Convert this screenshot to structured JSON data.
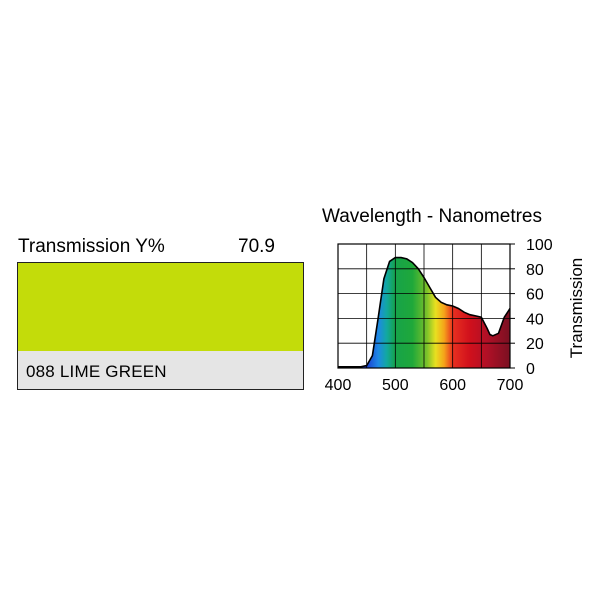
{
  "filter": {
    "transmission_label": "Transmission Y%",
    "transmission_value": "70.9",
    "name": "088 LIME GREEN",
    "swatch_color": "#c3dc0a"
  },
  "chart_data": {
    "type": "area",
    "title": "Wavelength - Nanometres",
    "xlabel": "Wavelength - Nanometres",
    "ylabel": "Transmission",
    "xlim": [
      400,
      700
    ],
    "ylim": [
      0,
      100
    ],
    "x_ticks": [
      "400",
      "500",
      "600",
      "700"
    ],
    "y_ticks": [
      "0",
      "20",
      "40",
      "60",
      "80",
      "100"
    ],
    "grid": true,
    "fill": "visible-spectrum",
    "series": [
      {
        "x": [
          400,
          420,
          440,
          450,
          460,
          470,
          480,
          490,
          500,
          510,
          520,
          530,
          540,
          550,
          560,
          570,
          580,
          590,
          600,
          610,
          620,
          630,
          640,
          650,
          660,
          665,
          670,
          680,
          690,
          700
        ],
        "y": [
          1,
          1,
          1,
          2,
          10,
          40,
          72,
          86,
          89,
          89,
          88,
          85,
          80,
          73,
          65,
          57,
          53,
          51,
          50,
          48,
          45,
          43,
          42,
          41,
          32,
          27,
          26,
          28,
          41,
          48
        ]
      }
    ]
  }
}
